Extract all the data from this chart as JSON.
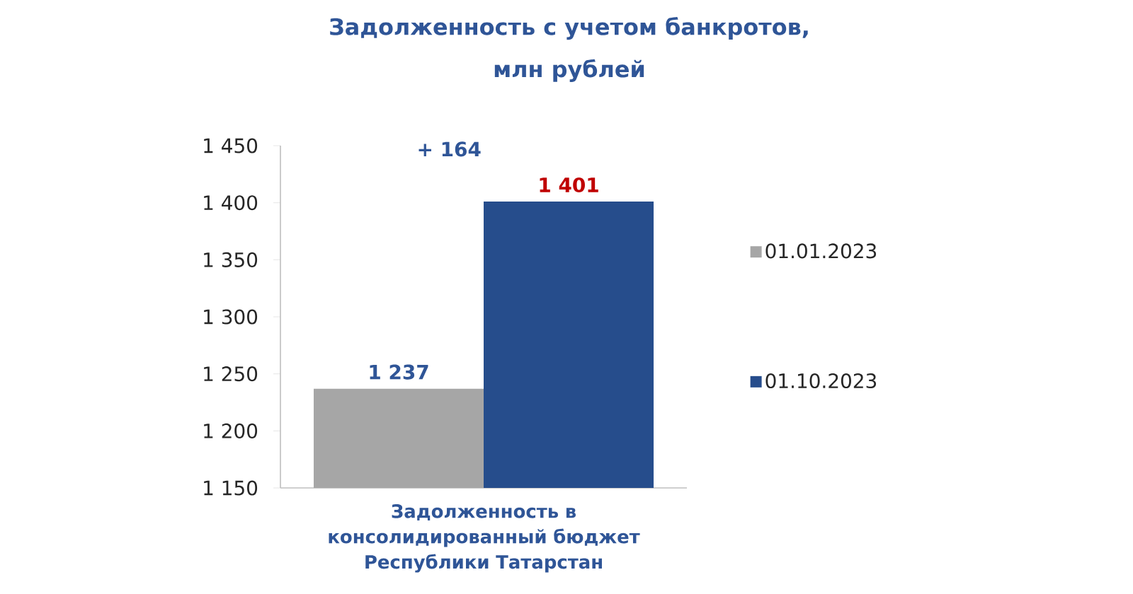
{
  "chart_data": {
    "type": "bar",
    "title": "Задолженность с учетом банкротов, млн рублей",
    "categories": [
      "Задолженность в консолидированный бюджет Республики Татарстан"
    ],
    "series": [
      {
        "name": "01.01.2023",
        "color": "#a6a6a6",
        "values": [
          1237
        ],
        "value_labels": [
          "1 237"
        ]
      },
      {
        "name": "01.10.2023",
        "color": "#264d8c",
        "values": [
          1401
        ],
        "value_labels": [
          "1 401"
        ]
      }
    ],
    "ylim": [
      1150,
      1450
    ],
    "yticks": [
      {
        "value": 1150,
        "label": "1 150"
      },
      {
        "value": 1200,
        "label": "1 200"
      },
      {
        "value": 1250,
        "label": "1 250"
      },
      {
        "value": 1300,
        "label": "1 300"
      },
      {
        "value": 1350,
        "label": "1 350"
      },
      {
        "value": 1400,
        "label": "1 400"
      },
      {
        "value": 1450,
        "label": "1 450"
      }
    ],
    "legend": "right",
    "annotations": [
      "+ 164"
    ]
  }
}
